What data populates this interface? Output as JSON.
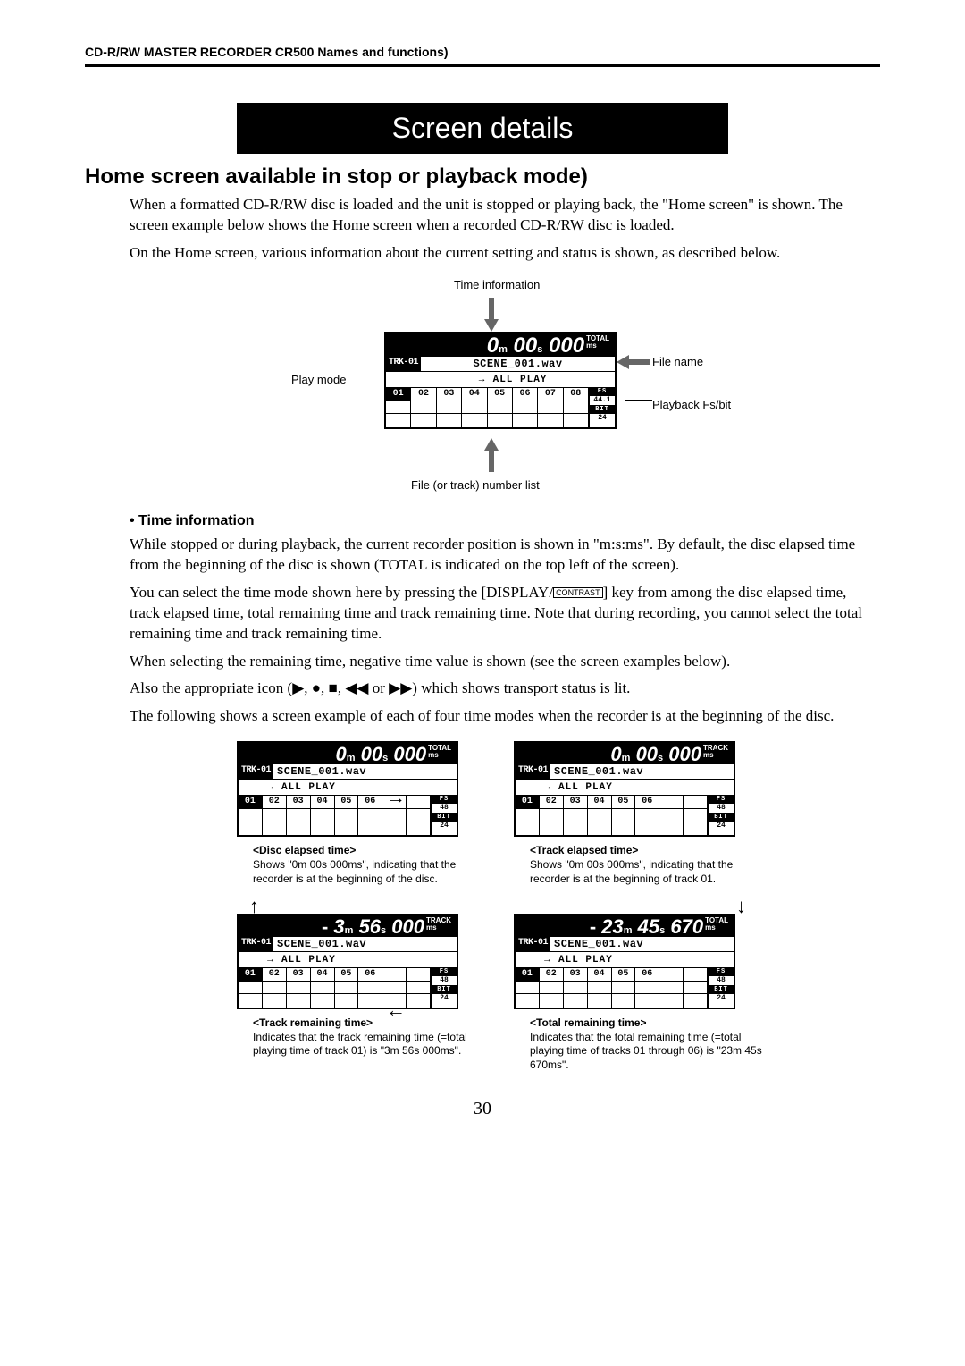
{
  "header": "CD-R/RW MASTER RECORDER  CR500 Names and functions)",
  "banner": "Screen details",
  "section_title": "Home screen available in stop or playback mode)",
  "para1": "When a formatted CD-R/RW disc is loaded and the unit is stopped or playing back, the \"Home screen\" is shown. The screen example below shows the Home screen when a recorded CD-R/RW disc is loaded.",
  "para2": "On the Home screen, various information about the current setting and status is shown, as described below.",
  "main_diagram": {
    "callouts": {
      "time_info": "Time information",
      "play_mode": "Play mode",
      "file_name": "File name",
      "playback_fs": "Playback Fs/bit",
      "file_list": "File (or track) number list"
    },
    "lcd": {
      "time_m": "0",
      "time_s": "00",
      "time_ms": "000",
      "suffix1": "TOTAL",
      "suffix2": "ms",
      "trk": "TRK-01",
      "fname": "SCENE_001.wav",
      "play_mode": "ALL PLAY",
      "tracks": [
        "01",
        "02",
        "03",
        "04",
        "05",
        "06",
        "07",
        "08"
      ],
      "fs": "44.1",
      "bit": "24"
    }
  },
  "sub_heading": "• Time information",
  "p3": "While stopped or during playback, the current recorder position is shown in \"m:s:ms\". By default, the disc elapsed time from the beginning of the disc is shown (TOTAL is indicated on the top left of the screen).",
  "p4a": "You can select the time mode shown here by pressing the [DISPLAY/",
  "p4key": "CONTRAST",
  "p4b": "] key from among the disc elapsed time, track elapsed time, total remaining time and track remaining time. Note that during recording, you cannot select the total remaining time and track remaining time.",
  "p5": "When selecting the remaining time, negative time value is shown (see the screen examples below).",
  "p6": "Also the appropriate icon (▶, ●, ■, ◀◀ or ▶▶) which shows transport status is lit.",
  "p7": "The following shows a screen example of each of four time modes when the recorder is at the beginning of the disc.",
  "examples": [
    {
      "lcd": {
        "prefix": "",
        "m": "0",
        "s": "00",
        "ms": "000",
        "suf": "TOTAL",
        "trk": "TRK-01",
        "fname": "SCENE_001.wav",
        "mode": "ALL PLAY",
        "tracks": [
          "01",
          "02",
          "03",
          "04",
          "05",
          "06"
        ],
        "fs": "48",
        "bit": "24"
      },
      "title": "<Disc elapsed time>",
      "desc": "Shows \"0m 00s 000ms\", indicating that the recorder is at the beginning of the disc."
    },
    {
      "lcd": {
        "prefix": "",
        "m": "0",
        "s": "00",
        "ms": "000",
        "suf": "TRACK",
        "trk": "TRK-01",
        "fname": "SCENE_001.wav",
        "mode": "ALL PLAY",
        "tracks": [
          "01",
          "02",
          "03",
          "04",
          "05",
          "06"
        ],
        "fs": "48",
        "bit": "24"
      },
      "title": "<Track elapsed time>",
      "desc": "Shows \"0m 00s 000ms\", indicating that the recorder is at the beginning of track 01."
    },
    {
      "lcd": {
        "prefix": "-",
        "m": "3",
        "s": "56",
        "ms": "000",
        "suf": "TRACK",
        "trk": "TRK-01",
        "fname": "SCENE_001.wav",
        "mode": "ALL PLAY",
        "tracks": [
          "01",
          "02",
          "03",
          "04",
          "05",
          "06"
        ],
        "fs": "48",
        "bit": "24"
      },
      "title": "<Track remaining time>",
      "desc": "Indicates that the track remaining time (=total playing time of track 01) is \"3m 56s 000ms\"."
    },
    {
      "lcd": {
        "prefix": "-",
        "m": "23",
        "s": "45",
        "ms": "670",
        "suf": "TOTAL",
        "trk": "TRK-01",
        "fname": "SCENE_001.wav",
        "mode": "ALL PLAY",
        "tracks": [
          "01",
          "02",
          "03",
          "04",
          "05",
          "06"
        ],
        "fs": "48",
        "bit": "24"
      },
      "title": "<Total remaining time>",
      "desc": "Indicates that the total remaining time (=total playing time of tracks 01 through 06) is \"23m 45s 670ms\"."
    }
  ],
  "page_number": "30"
}
